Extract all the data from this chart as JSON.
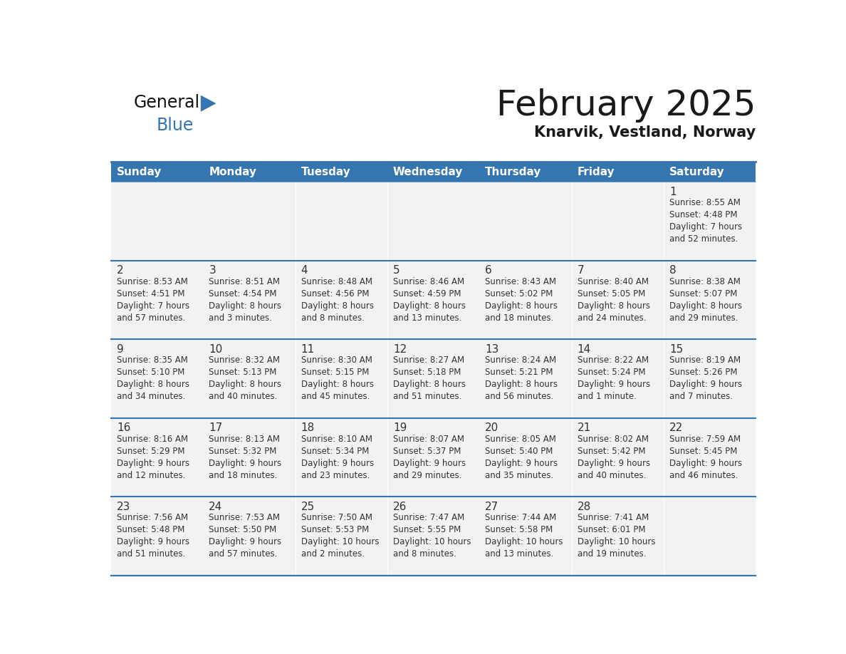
{
  "title": "February 2025",
  "subtitle": "Knarvik, Vestland, Norway",
  "header_color": "#3575b0",
  "header_text_color": "#ffffff",
  "cell_bg_even": "#f2f2f2",
  "cell_bg_odd": "#ffffff",
  "border_color": "#3575b0",
  "text_color": "#333333",
  "days_of_week": [
    "Sunday",
    "Monday",
    "Tuesday",
    "Wednesday",
    "Thursday",
    "Friday",
    "Saturday"
  ],
  "calendar_data": [
    [
      {
        "day": "",
        "info": ""
      },
      {
        "day": "",
        "info": ""
      },
      {
        "day": "",
        "info": ""
      },
      {
        "day": "",
        "info": ""
      },
      {
        "day": "",
        "info": ""
      },
      {
        "day": "",
        "info": ""
      },
      {
        "day": "1",
        "info": "Sunrise: 8:55 AM\nSunset: 4:48 PM\nDaylight: 7 hours\nand 52 minutes."
      }
    ],
    [
      {
        "day": "2",
        "info": "Sunrise: 8:53 AM\nSunset: 4:51 PM\nDaylight: 7 hours\nand 57 minutes."
      },
      {
        "day": "3",
        "info": "Sunrise: 8:51 AM\nSunset: 4:54 PM\nDaylight: 8 hours\nand 3 minutes."
      },
      {
        "day": "4",
        "info": "Sunrise: 8:48 AM\nSunset: 4:56 PM\nDaylight: 8 hours\nand 8 minutes."
      },
      {
        "day": "5",
        "info": "Sunrise: 8:46 AM\nSunset: 4:59 PM\nDaylight: 8 hours\nand 13 minutes."
      },
      {
        "day": "6",
        "info": "Sunrise: 8:43 AM\nSunset: 5:02 PM\nDaylight: 8 hours\nand 18 minutes."
      },
      {
        "day": "7",
        "info": "Sunrise: 8:40 AM\nSunset: 5:05 PM\nDaylight: 8 hours\nand 24 minutes."
      },
      {
        "day": "8",
        "info": "Sunrise: 8:38 AM\nSunset: 5:07 PM\nDaylight: 8 hours\nand 29 minutes."
      }
    ],
    [
      {
        "day": "9",
        "info": "Sunrise: 8:35 AM\nSunset: 5:10 PM\nDaylight: 8 hours\nand 34 minutes."
      },
      {
        "day": "10",
        "info": "Sunrise: 8:32 AM\nSunset: 5:13 PM\nDaylight: 8 hours\nand 40 minutes."
      },
      {
        "day": "11",
        "info": "Sunrise: 8:30 AM\nSunset: 5:15 PM\nDaylight: 8 hours\nand 45 minutes."
      },
      {
        "day": "12",
        "info": "Sunrise: 8:27 AM\nSunset: 5:18 PM\nDaylight: 8 hours\nand 51 minutes."
      },
      {
        "day": "13",
        "info": "Sunrise: 8:24 AM\nSunset: 5:21 PM\nDaylight: 8 hours\nand 56 minutes."
      },
      {
        "day": "14",
        "info": "Sunrise: 8:22 AM\nSunset: 5:24 PM\nDaylight: 9 hours\nand 1 minute."
      },
      {
        "day": "15",
        "info": "Sunrise: 8:19 AM\nSunset: 5:26 PM\nDaylight: 9 hours\nand 7 minutes."
      }
    ],
    [
      {
        "day": "16",
        "info": "Sunrise: 8:16 AM\nSunset: 5:29 PM\nDaylight: 9 hours\nand 12 minutes."
      },
      {
        "day": "17",
        "info": "Sunrise: 8:13 AM\nSunset: 5:32 PM\nDaylight: 9 hours\nand 18 minutes."
      },
      {
        "day": "18",
        "info": "Sunrise: 8:10 AM\nSunset: 5:34 PM\nDaylight: 9 hours\nand 23 minutes."
      },
      {
        "day": "19",
        "info": "Sunrise: 8:07 AM\nSunset: 5:37 PM\nDaylight: 9 hours\nand 29 minutes."
      },
      {
        "day": "20",
        "info": "Sunrise: 8:05 AM\nSunset: 5:40 PM\nDaylight: 9 hours\nand 35 minutes."
      },
      {
        "day": "21",
        "info": "Sunrise: 8:02 AM\nSunset: 5:42 PM\nDaylight: 9 hours\nand 40 minutes."
      },
      {
        "day": "22",
        "info": "Sunrise: 7:59 AM\nSunset: 5:45 PM\nDaylight: 9 hours\nand 46 minutes."
      }
    ],
    [
      {
        "day": "23",
        "info": "Sunrise: 7:56 AM\nSunset: 5:48 PM\nDaylight: 9 hours\nand 51 minutes."
      },
      {
        "day": "24",
        "info": "Sunrise: 7:53 AM\nSunset: 5:50 PM\nDaylight: 9 hours\nand 57 minutes."
      },
      {
        "day": "25",
        "info": "Sunrise: 7:50 AM\nSunset: 5:53 PM\nDaylight: 10 hours\nand 2 minutes."
      },
      {
        "day": "26",
        "info": "Sunrise: 7:47 AM\nSunset: 5:55 PM\nDaylight: 10 hours\nand 8 minutes."
      },
      {
        "day": "27",
        "info": "Sunrise: 7:44 AM\nSunset: 5:58 PM\nDaylight: 10 hours\nand 13 minutes."
      },
      {
        "day": "28",
        "info": "Sunrise: 7:41 AM\nSunset: 6:01 PM\nDaylight: 10 hours\nand 19 minutes."
      },
      {
        "day": "",
        "info": ""
      }
    ]
  ],
  "logo_text_general": "General",
  "logo_text_blue": "Blue",
  "logo_triangle_color": "#3575b0",
  "title_fontsize": 36,
  "subtitle_fontsize": 15,
  "header_fontsize": 11,
  "day_num_fontsize": 11,
  "info_fontsize": 8.5
}
